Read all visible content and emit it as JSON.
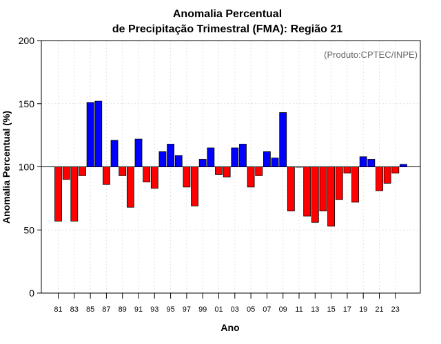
{
  "chart_data": {
    "type": "bar",
    "title_line1": "Anomalia Percentual",
    "title_line2": "de Precipitação Trimestral (FMA): Região 21",
    "xlabel": "Ano",
    "ylabel": "Anomalia Percentual (%)",
    "source": "(Produto:CPTEC/INPE)",
    "ylim": [
      0,
      200
    ],
    "yticks": [
      0,
      50,
      100,
      150,
      200
    ],
    "baseline": 100,
    "grid": true,
    "colors": {
      "above": "#0000ff",
      "below": "#ff0000",
      "outline": "#000000"
    },
    "categories": [
      "81",
      "82",
      "83",
      "84",
      "85",
      "86",
      "87",
      "88",
      "89",
      "90",
      "91",
      "92",
      "93",
      "94",
      "95",
      "96",
      "97",
      "98",
      "99",
      "00",
      "01",
      "02",
      "03",
      "04",
      "05",
      "06",
      "07",
      "08",
      "09",
      "10",
      "11",
      "12",
      "13",
      "14",
      "15",
      "16",
      "17",
      "18",
      "19",
      "20",
      "21",
      "22",
      "23",
      "24"
    ],
    "tick_labels": [
      "81",
      "83",
      "85",
      "87",
      "89",
      "91",
      "93",
      "95",
      "97",
      "99",
      "01",
      "03",
      "05",
      "07",
      "09",
      "11",
      "13",
      "15",
      "17",
      "19",
      "21",
      "23"
    ],
    "values": [
      57,
      90,
      57,
      93,
      151,
      152,
      86,
      121,
      93,
      68,
      122,
      88,
      83,
      112,
      118,
      109,
      84,
      69,
      106,
      115,
      94,
      92,
      115,
      118,
      84,
      93,
      112,
      107,
      143,
      65,
      100,
      61,
      56,
      65,
      53,
      74,
      95,
      72,
      108,
      106,
      81,
      87,
      95,
      102
    ]
  }
}
